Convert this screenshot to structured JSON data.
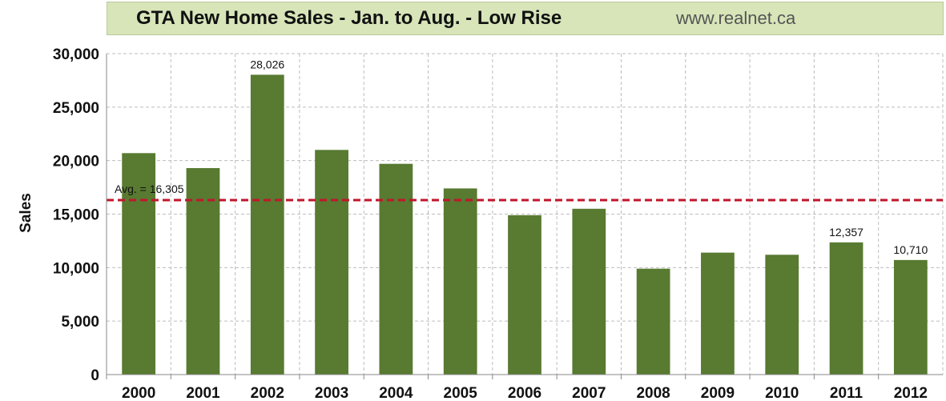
{
  "chart_data": {
    "type": "bar",
    "title": "GTA New Home Sales - Jan. to Aug. - Low Rise",
    "source": "www.realnet.ca",
    "xlabel": "",
    "ylabel": "Sales",
    "ylim": [
      0,
      30000
    ],
    "yticks": [
      0,
      5000,
      10000,
      15000,
      20000,
      25000,
      30000
    ],
    "ytick_labels": [
      "0",
      "5,000",
      "10,000",
      "15,000",
      "20,000",
      "25,000",
      "30,000"
    ],
    "categories": [
      "2000",
      "2001",
      "2002",
      "2003",
      "2004",
      "2005",
      "2006",
      "2007",
      "2008",
      "2009",
      "2010",
      "2011",
      "2012"
    ],
    "values": [
      20700,
      19300,
      28026,
      21000,
      19700,
      17400,
      14900,
      15500,
      9900,
      11400,
      11200,
      12357,
      10710
    ],
    "data_labels": [
      {
        "index": 2,
        "text": "28,026"
      },
      {
        "index": 11,
        "text": "12,357"
      },
      {
        "index": 12,
        "text": "10,710"
      }
    ],
    "average": {
      "value": 16305,
      "label": "Avg. = 16,305"
    },
    "grid": true,
    "legend": "none",
    "colors": {
      "bar": "#587a31",
      "average_line": "#c0162b",
      "title_band": "#d7e5b9"
    }
  }
}
